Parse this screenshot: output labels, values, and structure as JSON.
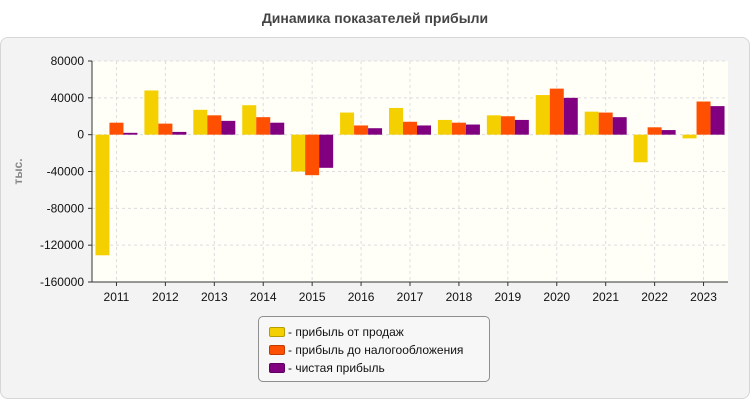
{
  "chart_data": {
    "type": "bar",
    "title": "Динамика показателей прибыли",
    "ylabel": "тыс.",
    "xlabel": "",
    "ylim": [
      -160000,
      80000
    ],
    "yticks": [
      80000,
      40000,
      0,
      -40000,
      -80000,
      -120000,
      -160000
    ],
    "grid": true,
    "legend_position": "bottom-center",
    "categories": [
      "2011",
      "2012",
      "2013",
      "2014",
      "2015",
      "2016",
      "2017",
      "2018",
      "2019",
      "2020",
      "2021",
      "2022",
      "2023"
    ],
    "series": [
      {
        "name": "- прибыль от продаж",
        "color": "#f5d000",
        "values": [
          -131000,
          48000,
          27000,
          32000,
          -40000,
          24000,
          29000,
          16000,
          21000,
          43000,
          25000,
          -30000,
          -4000
        ]
      },
      {
        "name": "- прибыль до налогообложения",
        "color": "#ff4f00",
        "values": [
          13000,
          12000,
          21000,
          19000,
          -44000,
          10000,
          14000,
          13000,
          20000,
          50000,
          24000,
          8000,
          36000
        ]
      },
      {
        "name": "- чистая прибыль",
        "color": "#800080",
        "values": [
          2000,
          3000,
          15000,
          13000,
          -36000,
          7000,
          10000,
          11000,
          16000,
          40000,
          19000,
          5000,
          31000
        ]
      }
    ]
  }
}
